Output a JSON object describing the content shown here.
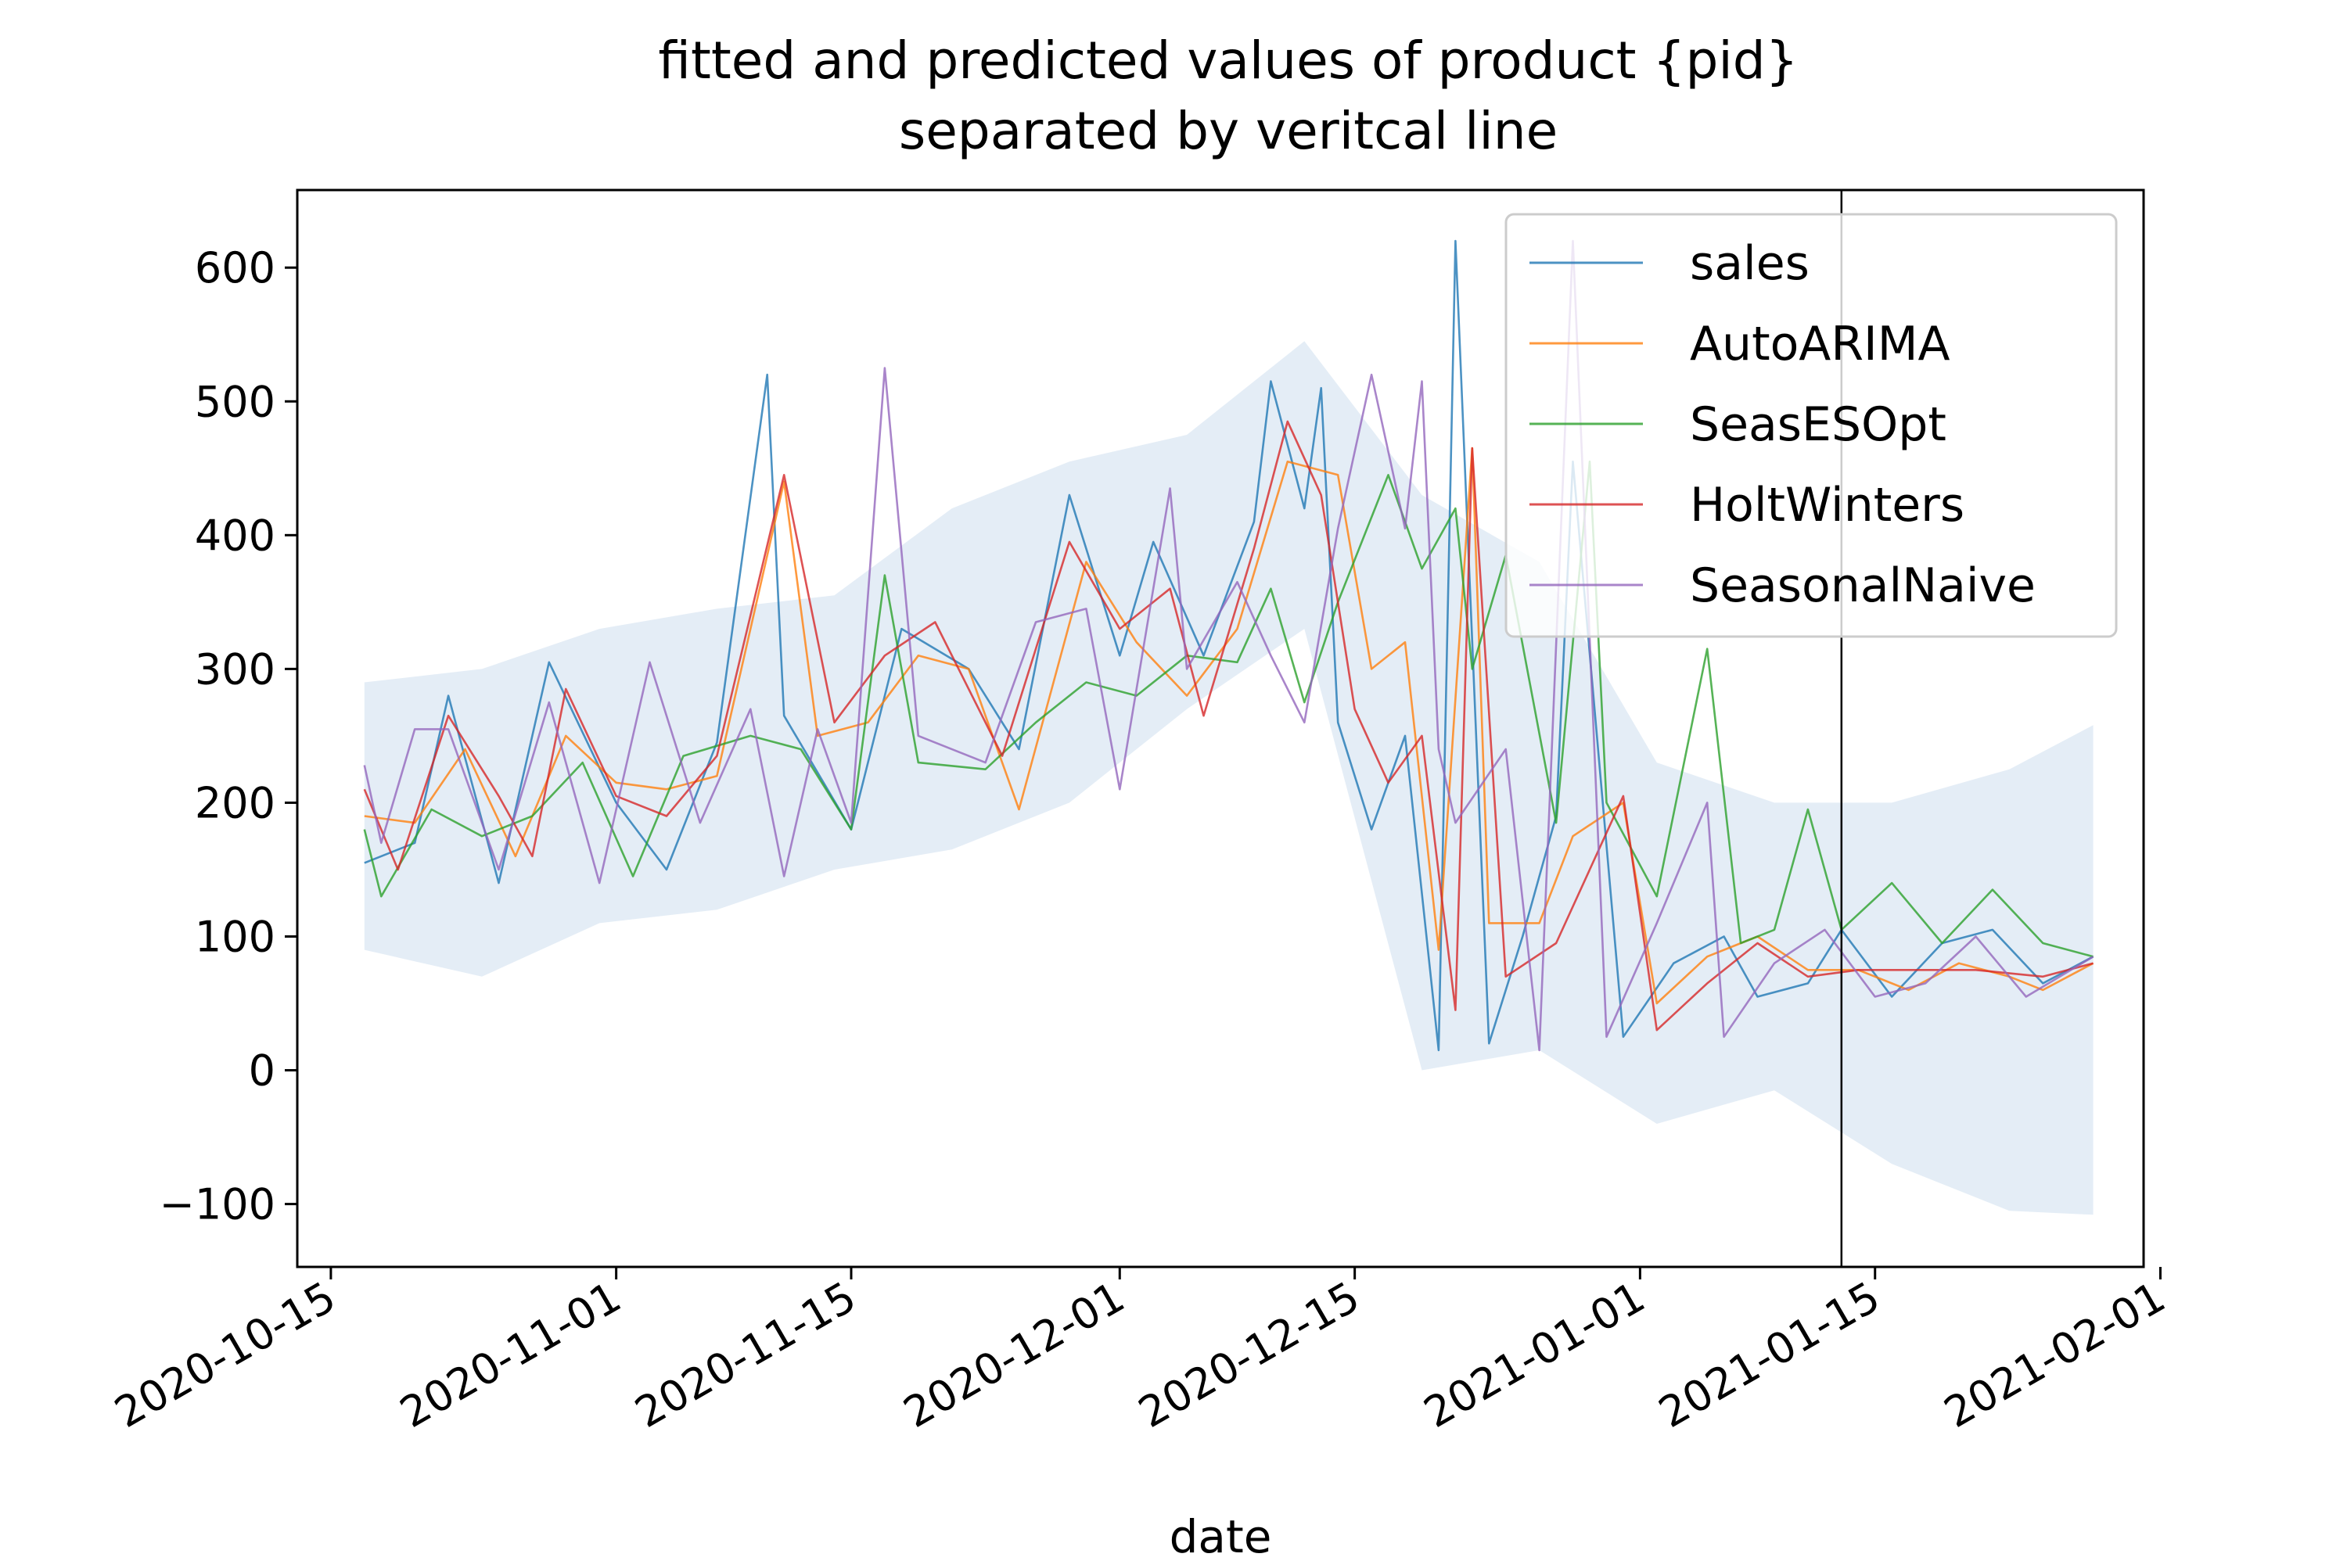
{
  "chart_data": {
    "type": "line",
    "title": "fitted and predicted values of product {pid}",
    "subtitle": "separated by veritcal line",
    "xlabel": "date",
    "ylabel": "",
    "x_axis": {
      "type": "date",
      "range": [
        "2020-10-13",
        "2021-01-31"
      ],
      "ticks": [
        "2020-10-15",
        "2020-11-01",
        "2020-11-15",
        "2020-12-01",
        "2020-12-15",
        "2021-01-01",
        "2021-01-15",
        "2021-02-01"
      ]
    },
    "y_axis": {
      "range": [
        -147,
        658
      ],
      "ticks": [
        -100,
        0,
        100,
        200,
        300,
        400,
        500,
        600
      ],
      "tick_labels": [
        "−100",
        "0",
        "100",
        "200",
        "300",
        "400",
        "500",
        "600"
      ]
    },
    "grid": false,
    "legend": {
      "position": "top-right"
    },
    "separator_date": "2021-01-13",
    "prediction_interval": {
      "color": "#dbe7f3",
      "upper": [
        {
          "x": "2020-10-17",
          "y": 290
        },
        {
          "x": "2020-10-24",
          "y": 300
        },
        {
          "x": "2020-10-31",
          "y": 330
        },
        {
          "x": "2020-11-07",
          "y": 345
        },
        {
          "x": "2020-11-14",
          "y": 355
        },
        {
          "x": "2020-11-21",
          "y": 420
        },
        {
          "x": "2020-11-28",
          "y": 455
        },
        {
          "x": "2020-12-05",
          "y": 475
        },
        {
          "x": "2020-12-12",
          "y": 545
        },
        {
          "x": "2020-12-19",
          "y": 430
        },
        {
          "x": "2020-12-26",
          "y": 380
        },
        {
          "x": "2021-01-02",
          "y": 230
        },
        {
          "x": "2021-01-09",
          "y": 200
        },
        {
          "x": "2021-01-16",
          "y": 200
        },
        {
          "x": "2021-01-23",
          "y": 225
        },
        {
          "x": "2021-01-28",
          "y": 258
        }
      ],
      "lower": [
        {
          "x": "2021-01-28",
          "y": -108
        },
        {
          "x": "2021-01-23",
          "y": -105
        },
        {
          "x": "2021-01-16",
          "y": -70
        },
        {
          "x": "2021-01-09",
          "y": -15
        },
        {
          "x": "2021-01-02",
          "y": -40
        },
        {
          "x": "2020-12-26",
          "y": 15
        },
        {
          "x": "2020-12-19",
          "y": 0
        },
        {
          "x": "2020-12-12",
          "y": 330
        },
        {
          "x": "2020-12-05",
          "y": 270
        },
        {
          "x": "2020-11-28",
          "y": 200
        },
        {
          "x": "2020-11-21",
          "y": 165
        },
        {
          "x": "2020-11-14",
          "y": 150
        },
        {
          "x": "2020-11-07",
          "y": 120
        },
        {
          "x": "2020-10-31",
          "y": 110
        },
        {
          "x": "2020-10-24",
          "y": 70
        },
        {
          "x": "2020-10-17",
          "y": 90
        }
      ]
    },
    "series": [
      {
        "name": "sales",
        "color": "#1f77b4",
        "points": [
          {
            "x": "2020-10-17",
            "y": 155
          },
          {
            "x": "2020-10-20",
            "y": 170
          },
          {
            "x": "2020-10-22",
            "y": 280
          },
          {
            "x": "2020-10-25",
            "y": 140
          },
          {
            "x": "2020-10-28",
            "y": 305
          },
          {
            "x": "2020-11-01",
            "y": 200
          },
          {
            "x": "2020-11-04",
            "y": 150
          },
          {
            "x": "2020-11-07",
            "y": 245
          },
          {
            "x": "2020-11-10",
            "y": 520
          },
          {
            "x": "2020-11-11",
            "y": 265
          },
          {
            "x": "2020-11-15",
            "y": 180
          },
          {
            "x": "2020-11-18",
            "y": 330
          },
          {
            "x": "2020-11-22",
            "y": 300
          },
          {
            "x": "2020-11-25",
            "y": 240
          },
          {
            "x": "2020-11-28",
            "y": 430
          },
          {
            "x": "2020-12-01",
            "y": 310
          },
          {
            "x": "2020-12-03",
            "y": 395
          },
          {
            "x": "2020-12-06",
            "y": 310
          },
          {
            "x": "2020-12-09",
            "y": 410
          },
          {
            "x": "2020-12-10",
            "y": 515
          },
          {
            "x": "2020-12-12",
            "y": 420
          },
          {
            "x": "2020-12-13",
            "y": 510
          },
          {
            "x": "2020-12-14",
            "y": 260
          },
          {
            "x": "2020-12-16",
            "y": 180
          },
          {
            "x": "2020-12-18",
            "y": 250
          },
          {
            "x": "2020-12-20",
            "y": 15
          },
          {
            "x": "2020-12-21",
            "y": 620
          },
          {
            "x": "2020-12-23",
            "y": 20
          },
          {
            "x": "2020-12-25",
            "y": 100
          },
          {
            "x": "2020-12-27",
            "y": 190
          },
          {
            "x": "2020-12-28",
            "y": 455
          },
          {
            "x": "2020-12-31",
            "y": 25
          },
          {
            "x": "2021-01-03",
            "y": 80
          },
          {
            "x": "2021-01-06",
            "y": 100
          },
          {
            "x": "2021-01-08",
            "y": 55
          },
          {
            "x": "2021-01-11",
            "y": 65
          },
          {
            "x": "2021-01-13",
            "y": 105
          },
          {
            "x": "2021-01-16",
            "y": 55
          },
          {
            "x": "2021-01-19",
            "y": 95
          },
          {
            "x": "2021-01-22",
            "y": 105
          },
          {
            "x": "2021-01-25",
            "y": 65
          },
          {
            "x": "2021-01-28",
            "y": 85
          }
        ]
      },
      {
        "name": "AutoARIMA",
        "color": "#ff7f0e",
        "points": [
          {
            "x": "2020-10-17",
            "y": 190
          },
          {
            "x": "2020-10-20",
            "y": 185
          },
          {
            "x": "2020-10-23",
            "y": 240
          },
          {
            "x": "2020-10-26",
            "y": 160
          },
          {
            "x": "2020-10-29",
            "y": 250
          },
          {
            "x": "2020-11-01",
            "y": 215
          },
          {
            "x": "2020-11-04",
            "y": 210
          },
          {
            "x": "2020-11-07",
            "y": 220
          },
          {
            "x": "2020-11-11",
            "y": 440
          },
          {
            "x": "2020-11-13",
            "y": 250
          },
          {
            "x": "2020-11-16",
            "y": 260
          },
          {
            "x": "2020-11-19",
            "y": 310
          },
          {
            "x": "2020-11-22",
            "y": 300
          },
          {
            "x": "2020-11-25",
            "y": 195
          },
          {
            "x": "2020-11-29",
            "y": 380
          },
          {
            "x": "2020-12-02",
            "y": 320
          },
          {
            "x": "2020-12-05",
            "y": 280
          },
          {
            "x": "2020-12-08",
            "y": 330
          },
          {
            "x": "2020-12-11",
            "y": 455
          },
          {
            "x": "2020-12-14",
            "y": 445
          },
          {
            "x": "2020-12-16",
            "y": 300
          },
          {
            "x": "2020-12-18",
            "y": 320
          },
          {
            "x": "2020-12-20",
            "y": 90
          },
          {
            "x": "2020-12-22",
            "y": 465
          },
          {
            "x": "2020-12-23",
            "y": 110
          },
          {
            "x": "2020-12-26",
            "y": 110
          },
          {
            "x": "2020-12-28",
            "y": 175
          },
          {
            "x": "2020-12-31",
            "y": 200
          },
          {
            "x": "2021-01-02",
            "y": 50
          },
          {
            "x": "2021-01-05",
            "y": 85
          },
          {
            "x": "2021-01-08",
            "y": 100
          },
          {
            "x": "2021-01-11",
            "y": 75
          },
          {
            "x": "2021-01-14",
            "y": 75
          },
          {
            "x": "2021-01-17",
            "y": 60
          },
          {
            "x": "2021-01-20",
            "y": 80
          },
          {
            "x": "2021-01-23",
            "y": 70
          },
          {
            "x": "2021-01-25",
            "y": 60
          },
          {
            "x": "2021-01-28",
            "y": 80
          }
        ]
      },
      {
        "name": "SeasESOpt",
        "color": "#2ca02c",
        "points": [
          {
            "x": "2020-10-17",
            "y": 180
          },
          {
            "x": "2020-10-18",
            "y": 130
          },
          {
            "x": "2020-10-21",
            "y": 195
          },
          {
            "x": "2020-10-24",
            "y": 175
          },
          {
            "x": "2020-10-27",
            "y": 190
          },
          {
            "x": "2020-10-30",
            "y": 230
          },
          {
            "x": "2020-11-02",
            "y": 145
          },
          {
            "x": "2020-11-05",
            "y": 235
          },
          {
            "x": "2020-11-09",
            "y": 250
          },
          {
            "x": "2020-11-12",
            "y": 240
          },
          {
            "x": "2020-11-15",
            "y": 180
          },
          {
            "x": "2020-11-17",
            "y": 370
          },
          {
            "x": "2020-11-19",
            "y": 230
          },
          {
            "x": "2020-11-23",
            "y": 225
          },
          {
            "x": "2020-11-26",
            "y": 260
          },
          {
            "x": "2020-11-29",
            "y": 290
          },
          {
            "x": "2020-12-02",
            "y": 280
          },
          {
            "x": "2020-12-05",
            "y": 310
          },
          {
            "x": "2020-12-08",
            "y": 305
          },
          {
            "x": "2020-12-10",
            "y": 360
          },
          {
            "x": "2020-12-12",
            "y": 275
          },
          {
            "x": "2020-12-14",
            "y": 350
          },
          {
            "x": "2020-12-17",
            "y": 445
          },
          {
            "x": "2020-12-19",
            "y": 375
          },
          {
            "x": "2020-12-21",
            "y": 420
          },
          {
            "x": "2020-12-22",
            "y": 300
          },
          {
            "x": "2020-12-24",
            "y": 385
          },
          {
            "x": "2020-12-27",
            "y": 185
          },
          {
            "x": "2020-12-29",
            "y": 455
          },
          {
            "x": "2020-12-30",
            "y": 200
          },
          {
            "x": "2021-01-02",
            "y": 130
          },
          {
            "x": "2021-01-05",
            "y": 315
          },
          {
            "x": "2021-01-07",
            "y": 95
          },
          {
            "x": "2021-01-09",
            "y": 105
          },
          {
            "x": "2021-01-11",
            "y": 195
          },
          {
            "x": "2021-01-13",
            "y": 105
          },
          {
            "x": "2021-01-16",
            "y": 140
          },
          {
            "x": "2021-01-19",
            "y": 95
          },
          {
            "x": "2021-01-22",
            "y": 135
          },
          {
            "x": "2021-01-25",
            "y": 95
          },
          {
            "x": "2021-01-28",
            "y": 85
          }
        ]
      },
      {
        "name": "HoltWinters",
        "color": "#d62728",
        "points": [
          {
            "x": "2020-10-17",
            "y": 210
          },
          {
            "x": "2020-10-19",
            "y": 150
          },
          {
            "x": "2020-10-22",
            "y": 265
          },
          {
            "x": "2020-10-25",
            "y": 205
          },
          {
            "x": "2020-10-27",
            "y": 160
          },
          {
            "x": "2020-10-29",
            "y": 285
          },
          {
            "x": "2020-11-01",
            "y": 205
          },
          {
            "x": "2020-11-04",
            "y": 190
          },
          {
            "x": "2020-11-07",
            "y": 235
          },
          {
            "x": "2020-11-11",
            "y": 445
          },
          {
            "x": "2020-11-14",
            "y": 260
          },
          {
            "x": "2020-11-17",
            "y": 310
          },
          {
            "x": "2020-11-20",
            "y": 335
          },
          {
            "x": "2020-11-24",
            "y": 235
          },
          {
            "x": "2020-11-28",
            "y": 395
          },
          {
            "x": "2020-12-01",
            "y": 330
          },
          {
            "x": "2020-12-04",
            "y": 360
          },
          {
            "x": "2020-12-06",
            "y": 265
          },
          {
            "x": "2020-12-09",
            "y": 390
          },
          {
            "x": "2020-12-11",
            "y": 485
          },
          {
            "x": "2020-12-13",
            "y": 430
          },
          {
            "x": "2020-12-15",
            "y": 270
          },
          {
            "x": "2020-12-17",
            "y": 215
          },
          {
            "x": "2020-12-19",
            "y": 250
          },
          {
            "x": "2020-12-21",
            "y": 45
          },
          {
            "x": "2020-12-22",
            "y": 465
          },
          {
            "x": "2020-12-24",
            "y": 70
          },
          {
            "x": "2020-12-27",
            "y": 95
          },
          {
            "x": "2020-12-29",
            "y": 150
          },
          {
            "x": "2020-12-31",
            "y": 205
          },
          {
            "x": "2021-01-02",
            "y": 30
          },
          {
            "x": "2021-01-05",
            "y": 65
          },
          {
            "x": "2021-01-08",
            "y": 95
          },
          {
            "x": "2021-01-11",
            "y": 70
          },
          {
            "x": "2021-01-14",
            "y": 75
          },
          {
            "x": "2021-01-17",
            "y": 75
          },
          {
            "x": "2021-01-21",
            "y": 75
          },
          {
            "x": "2021-01-25",
            "y": 70
          },
          {
            "x": "2021-01-28",
            "y": 80
          }
        ]
      },
      {
        "name": "SeasonalNaive",
        "color": "#9467bd",
        "points": [
          {
            "x": "2020-10-17",
            "y": 228
          },
          {
            "x": "2020-10-18",
            "y": 170
          },
          {
            "x": "2020-10-20",
            "y": 255
          },
          {
            "x": "2020-10-22",
            "y": 255
          },
          {
            "x": "2020-10-25",
            "y": 150
          },
          {
            "x": "2020-10-28",
            "y": 275
          },
          {
            "x": "2020-10-31",
            "y": 140
          },
          {
            "x": "2020-11-03",
            "y": 305
          },
          {
            "x": "2020-11-06",
            "y": 185
          },
          {
            "x": "2020-11-09",
            "y": 270
          },
          {
            "x": "2020-11-11",
            "y": 145
          },
          {
            "x": "2020-11-13",
            "y": 255
          },
          {
            "x": "2020-11-15",
            "y": 185
          },
          {
            "x": "2020-11-17",
            "y": 525
          },
          {
            "x": "2020-11-19",
            "y": 250
          },
          {
            "x": "2020-11-23",
            "y": 230
          },
          {
            "x": "2020-11-26",
            "y": 335
          },
          {
            "x": "2020-11-29",
            "y": 345
          },
          {
            "x": "2020-12-01",
            "y": 210
          },
          {
            "x": "2020-12-04",
            "y": 435
          },
          {
            "x": "2020-12-05",
            "y": 300
          },
          {
            "x": "2020-12-08",
            "y": 365
          },
          {
            "x": "2020-12-10",
            "y": 310
          },
          {
            "x": "2020-12-12",
            "y": 260
          },
          {
            "x": "2020-12-14",
            "y": 405
          },
          {
            "x": "2020-12-16",
            "y": 520
          },
          {
            "x": "2020-12-18",
            "y": 405
          },
          {
            "x": "2020-12-19",
            "y": 515
          },
          {
            "x": "2020-12-20",
            "y": 240
          },
          {
            "x": "2020-12-21",
            "y": 185
          },
          {
            "x": "2020-12-24",
            "y": 240
          },
          {
            "x": "2020-12-26",
            "y": 15
          },
          {
            "x": "2020-12-28",
            "y": 620
          },
          {
            "x": "2020-12-30",
            "y": 25
          },
          {
            "x": "2021-01-02",
            "y": 110
          },
          {
            "x": "2021-01-05",
            "y": 200
          },
          {
            "x": "2021-01-06",
            "y": 25
          },
          {
            "x": "2021-01-09",
            "y": 80
          },
          {
            "x": "2021-01-12",
            "y": 105
          },
          {
            "x": "2021-01-15",
            "y": 55
          },
          {
            "x": "2021-01-18",
            "y": 65
          },
          {
            "x": "2021-01-21",
            "y": 100
          },
          {
            "x": "2021-01-24",
            "y": 55
          },
          {
            "x": "2021-01-28",
            "y": 85
          }
        ]
      }
    ]
  }
}
